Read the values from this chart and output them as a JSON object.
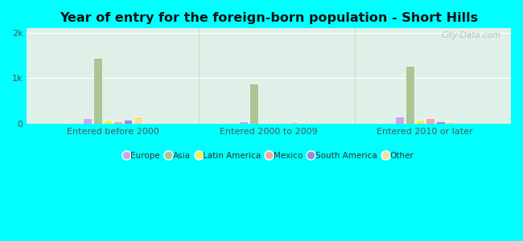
{
  "title": "Year of entry for the foreign-born population - Short Hills",
  "groups": [
    "Entered before 2000",
    "Entered 2000 to 2009",
    "Entered 2010 or later"
  ],
  "categories": [
    "Europe",
    "Asia",
    "Latin America",
    "Mexico",
    "South America",
    "Other"
  ],
  "colors": [
    "#c9a8e8",
    "#adc494",
    "#f0f060",
    "#f5a8a0",
    "#9090d8",
    "#f5dfa0"
  ],
  "values": [
    [
      130,
      1450,
      80,
      50,
      90,
      160
    ],
    [
      60,
      880,
      25,
      18,
      25,
      55
    ],
    [
      155,
      1280,
      85,
      120,
      60,
      45
    ]
  ],
  "ylim": [
    0,
    2100
  ],
  "yticks": [
    0,
    1000,
    2000
  ],
  "ytick_labels": [
    "0",
    "1k",
    "2k"
  ],
  "background_color": "#00ffff",
  "plot_bg_gradient_top": "#e8f5e8",
  "plot_bg_gradient_bottom": "#d0eee0",
  "bar_width": 0.055,
  "watermark": "City-Data.com",
  "separator_color": "#ccddcc"
}
